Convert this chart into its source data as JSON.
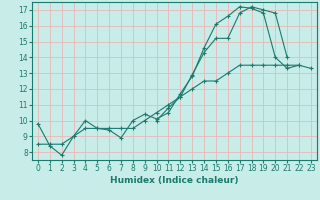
{
  "xlabel": "Humidex (Indice chaleur)",
  "ylabel": "",
  "xlim": [
    -0.5,
    23.5
  ],
  "ylim": [
    7.5,
    17.5
  ],
  "xticks": [
    0,
    1,
    2,
    3,
    4,
    5,
    6,
    7,
    8,
    9,
    10,
    11,
    12,
    13,
    14,
    15,
    16,
    17,
    18,
    19,
    20,
    21,
    22,
    23
  ],
  "yticks": [
    8,
    9,
    10,
    11,
    12,
    13,
    14,
    15,
    16,
    17
  ],
  "background_color": "#c8ece8",
  "grid_color": "#e8b8b8",
  "line_color": "#1a7a6e",
  "line1_y": [
    9.8,
    8.4,
    7.8,
    9.0,
    10.0,
    9.5,
    9.4,
    8.9,
    10.0,
    10.4,
    10.1,
    10.5,
    11.7,
    12.8,
    14.6,
    16.1,
    16.6,
    17.2,
    17.1,
    16.8,
    14.0,
    13.3,
    13.5,
    null
  ],
  "line2_y": [
    null,
    null,
    null,
    null,
    null,
    null,
    null,
    null,
    null,
    null,
    10.0,
    10.8,
    11.5,
    12.9,
    14.3,
    15.2,
    15.2,
    16.8,
    17.2,
    17.0,
    16.8,
    14.0,
    null,
    null
  ],
  "line3_y": [
    8.5,
    8.5,
    8.5,
    9.0,
    9.5,
    9.5,
    9.5,
    9.5,
    9.5,
    10.0,
    10.5,
    11.0,
    11.5,
    12.0,
    12.5,
    12.5,
    13.0,
    13.5,
    13.5,
    13.5,
    13.5,
    13.5,
    13.5,
    13.3
  ],
  "tick_fontsize": 5.5,
  "xlabel_fontsize": 6.5
}
